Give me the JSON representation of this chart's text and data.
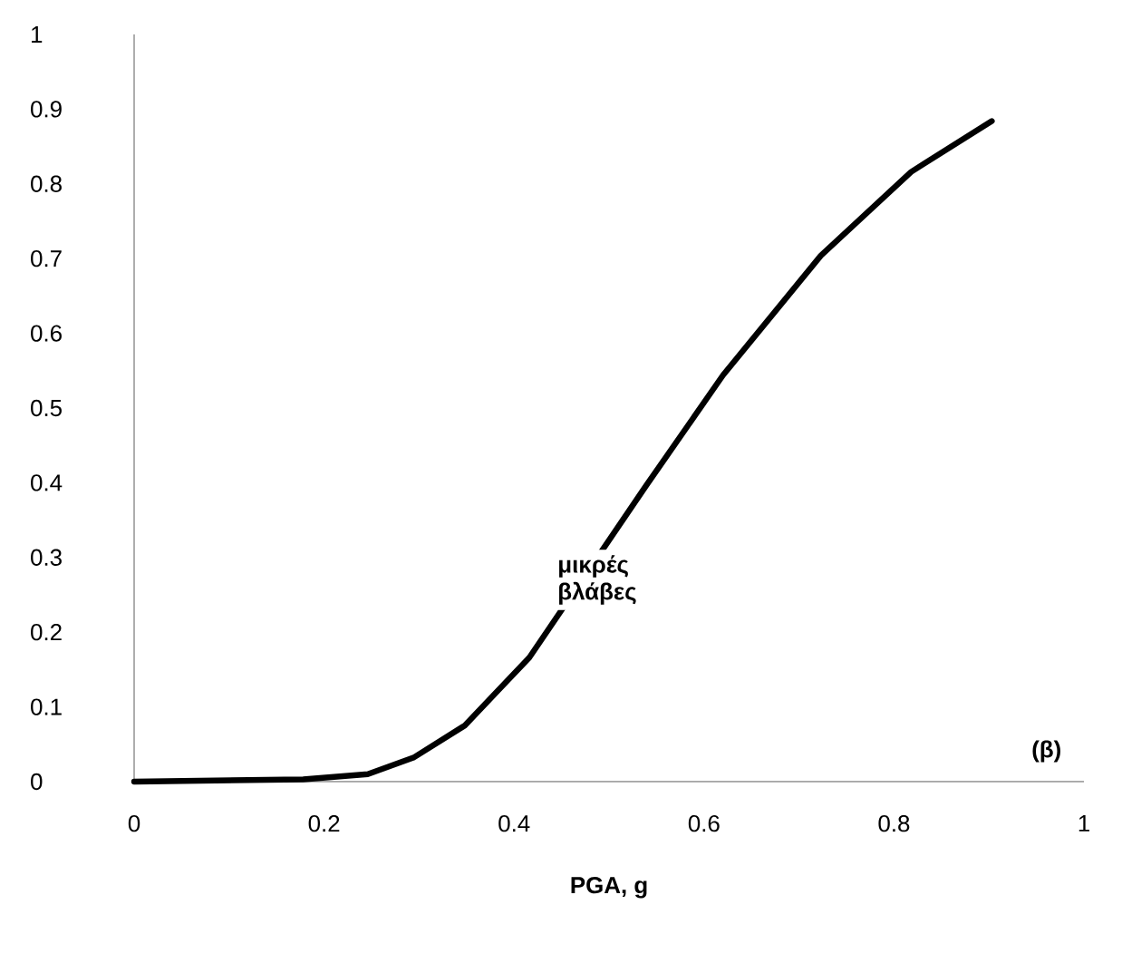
{
  "chart_data": {
    "type": "line",
    "xlabel": "PGA, g",
    "x": [
      0,
      0.178,
      0.246,
      0.294,
      0.348,
      0.416,
      0.539,
      0.62,
      0.723,
      0.818,
      0.903
    ],
    "values": [
      0,
      0.003,
      0.01,
      0.032,
      0.075,
      0.166,
      0.396,
      0.544,
      0.704,
      0.816,
      0.884
    ],
    "color": "#000000",
    "xlim": [
      0,
      1
    ],
    "ylim": [
      0,
      1
    ],
    "xticks": [
      0,
      0.2,
      0.4,
      0.6,
      0.8,
      1
    ],
    "yticks": [
      0,
      0.1,
      0.2,
      0.3,
      0.4,
      0.5,
      0.6,
      0.7,
      0.8,
      0.9,
      1
    ],
    "grid": false,
    "marker": "none",
    "line_style": "solid",
    "annotations": [
      "μικρές βλάβες",
      "(β)"
    ]
  }
}
